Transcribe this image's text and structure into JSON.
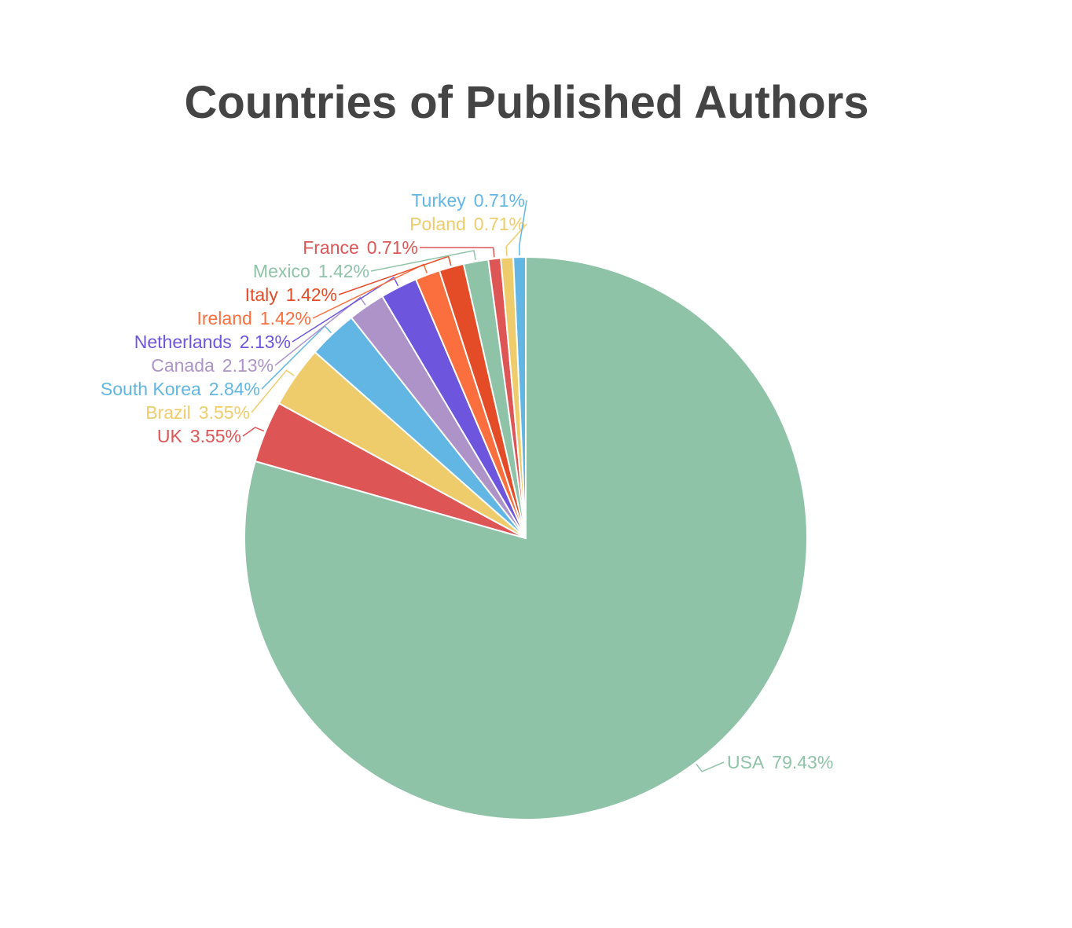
{
  "chart_data": {
    "type": "pie",
    "title": "Countries of Published Authors",
    "categories": [
      "USA",
      "UK",
      "Brazil",
      "South Korea",
      "Canada",
      "Netherlands",
      "Ireland",
      "Italy",
      "Mexico",
      "France",
      "Poland",
      "Turkey"
    ],
    "values": [
      79.43,
      3.55,
      3.55,
      2.84,
      2.13,
      2.13,
      1.42,
      1.42,
      1.42,
      0.71,
      0.71,
      0.71
    ],
    "value_labels": [
      "79.43%",
      "3.55%",
      "3.55%",
      "2.84%",
      "2.13%",
      "2.13%",
      "1.42%",
      "1.42%",
      "1.42%",
      "0.71%",
      "0.71%",
      "0.71%"
    ],
    "colors": [
      "#8fc3a8",
      "#dd5555",
      "#efcc6b",
      "#62b6e4",
      "#ad93c8",
      "#6e55dd",
      "#fb6e3e",
      "#e34c27",
      "#8fc3a8",
      "#dd5555",
      "#efcc6b",
      "#62b6e4"
    ]
  }
}
